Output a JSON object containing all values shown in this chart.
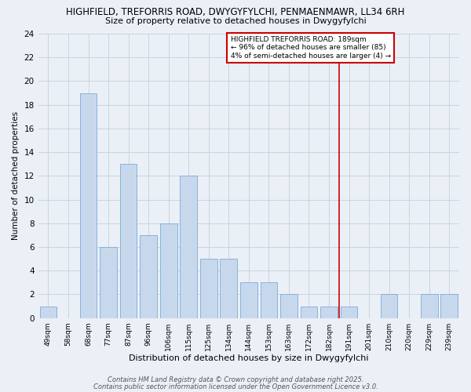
{
  "title1": "HIGHFIELD, TREFORRIS ROAD, DWYGYFYLCHI, PENMAENMAWR, LL34 6RH",
  "title2": "Size of property relative to detached houses in Dwygyfylchi",
  "xlabel": "Distribution of detached houses by size in Dwygyfylchi",
  "ylabel": "Number of detached properties",
  "categories": [
    "49sqm",
    "58sqm",
    "68sqm",
    "77sqm",
    "87sqm",
    "96sqm",
    "106sqm",
    "115sqm",
    "125sqm",
    "134sqm",
    "144sqm",
    "153sqm",
    "163sqm",
    "172sqm",
    "182sqm",
    "191sqm",
    "201sqm",
    "210sqm",
    "220sqm",
    "229sqm",
    "239sqm"
  ],
  "values": [
    1,
    0,
    19,
    6,
    13,
    7,
    8,
    12,
    5,
    5,
    3,
    3,
    2,
    1,
    1,
    1,
    0,
    2,
    0,
    2,
    2
  ],
  "bar_color": "#C8D8EC",
  "bar_edge_color": "#7AABDB",
  "grid_color": "#C8D4E0",
  "bg_color": "#EBF0F7",
  "red_line_x": 14.5,
  "red_line_color": "#CC0000",
  "annotation_text": "HIGHFIELD TREFORRIS ROAD: 189sqm\n← 96% of detached houses are smaller (85)\n4% of semi-detached houses are larger (4) →",
  "annotation_box_color": "#FFFFFF",
  "annotation_box_edge": "#CC0000",
  "ylim": [
    0,
    24
  ],
  "yticks": [
    0,
    2,
    4,
    6,
    8,
    10,
    12,
    14,
    16,
    18,
    20,
    22,
    24
  ],
  "footer1": "Contains HM Land Registry data © Crown copyright and database right 2025.",
  "footer2": "Contains public sector information licensed under the Open Government Licence v3.0."
}
